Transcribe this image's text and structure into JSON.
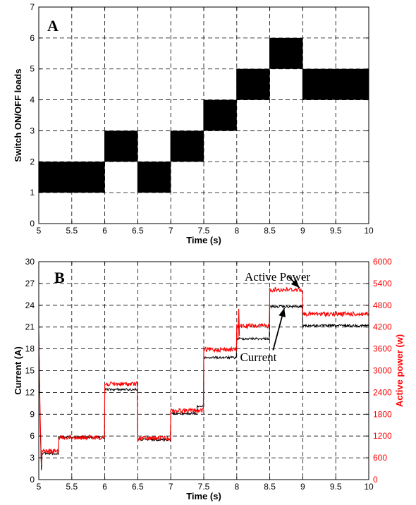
{
  "chart_data": [
    {
      "type": "step",
      "panel_label": "A",
      "xlabel": "Time (s)",
      "ylabel": "Switch ON/OFF loads",
      "xlim": [
        5,
        10
      ],
      "ylim": [
        0,
        7
      ],
      "xticks": [
        "5",
        "5.5",
        "6",
        "6.5",
        "7",
        "7.5",
        "8",
        "8.5",
        "9",
        "9.5",
        "10"
      ],
      "yticks": [
        "0",
        "1",
        "2",
        "3",
        "4",
        "5",
        "6",
        "7"
      ],
      "grid": true,
      "series": [
        {
          "color": "#000000",
          "bands": [
            {
              "x0": 5.0,
              "x1": 6.0,
              "low": 1,
              "high": 2
            },
            {
              "x0": 6.0,
              "x1": 6.5,
              "low": 2,
              "high": 3
            },
            {
              "x0": 6.5,
              "x1": 7.0,
              "low": 1,
              "high": 2
            },
            {
              "x0": 7.0,
              "x1": 7.5,
              "low": 2,
              "high": 3
            },
            {
              "x0": 7.5,
              "x1": 8.0,
              "low": 3,
              "high": 4
            },
            {
              "x0": 8.0,
              "x1": 8.5,
              "low": 4,
              "high": 5
            },
            {
              "x0": 8.5,
              "x1": 9.0,
              "low": 5,
              "high": 6
            },
            {
              "x0": 9.0,
              "x1": 10.0,
              "low": 4,
              "high": 5
            }
          ]
        }
      ]
    },
    {
      "type": "line",
      "panel_label": "B",
      "xlabel": "Time (s)",
      "ylabel": "Current (A)",
      "ylabel_right": "Active power (w)",
      "xlim": [
        5,
        10
      ],
      "ylim": [
        0,
        30
      ],
      "ylim_right": [
        0,
        6000
      ],
      "xticks": [
        "5",
        "5.5",
        "6",
        "6.5",
        "7",
        "7.5",
        "8",
        "8.5",
        "9",
        "9.5",
        "10"
      ],
      "yticks": [
        "0",
        "3",
        "6",
        "9",
        "12",
        "15",
        "18",
        "21",
        "24",
        "27",
        "30"
      ],
      "yticks_right": [
        "0",
        "600",
        "1200",
        "1800",
        "2400",
        "3000",
        "3600",
        "4200",
        "4800",
        "5400",
        "6000"
      ],
      "grid": true,
      "annotations": [
        {
          "text": "Active Power",
          "x": 8.12,
          "y": 27.4
        },
        {
          "text": "Current",
          "x": 8.05,
          "y": 16.3
        }
      ],
      "series": [
        {
          "axis": "left",
          "color": "#000000",
          "segments": [
            {
              "x0": 5.05,
              "x1": 5.3,
              "y": 3.6
            },
            {
              "x0": 5.3,
              "x1": 6.0,
              "y": 5.8
            },
            {
              "x0": 6.0,
              "x1": 6.5,
              "y": 12.4
            },
            {
              "x0": 6.5,
              "x1": 7.0,
              "y": 5.5
            },
            {
              "x0": 7.0,
              "x1": 7.4,
              "y": 9.1
            },
            {
              "x0": 7.4,
              "x1": 7.5,
              "y": 10.1
            },
            {
              "x0": 7.5,
              "x1": 8.0,
              "y": 16.8
            },
            {
              "x0": 8.0,
              "x1": 8.5,
              "y": 19.4
            },
            {
              "x0": 8.5,
              "x1": 9.0,
              "y": 23.8
            },
            {
              "x0": 9.0,
              "x1": 10.0,
              "y": 21.2
            }
          ]
        },
        {
          "axis": "right",
          "color": "#ff0000",
          "segments": [
            {
              "x0": 5.05,
              "x1": 5.3,
              "y": 780
            },
            {
              "x0": 5.3,
              "x1": 6.0,
              "y": 1160
            },
            {
              "x0": 6.0,
              "x1": 6.5,
              "y": 2630
            },
            {
              "x0": 6.5,
              "x1": 7.0,
              "y": 1140
            },
            {
              "x0": 7.0,
              "x1": 7.5,
              "y": 1900
            },
            {
              "x0": 7.5,
              "x1": 8.0,
              "y": 3580
            },
            {
              "x0": 8.0,
              "x1": 8.5,
              "y": 4230
            },
            {
              "x0": 8.5,
              "x1": 9.0,
              "y": 5230
            },
            {
              "x0": 9.0,
              "x1": 10.0,
              "y": 4560
            }
          ]
        }
      ]
    }
  ]
}
